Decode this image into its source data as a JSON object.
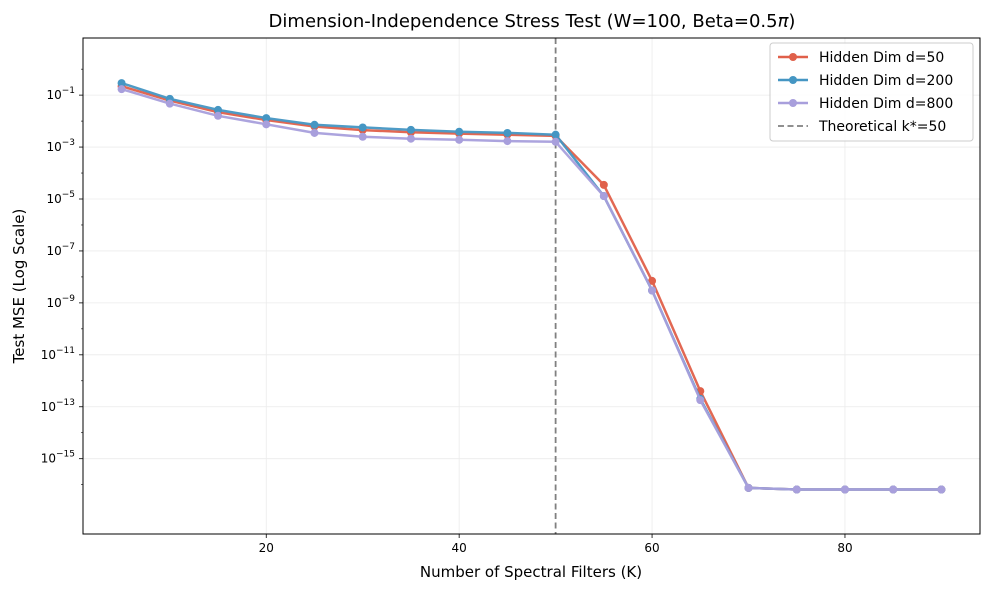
{
  "chart_data": {
    "type": "line",
    "title_main": "Dimension-Independence Stress Test (W=100, Beta=0.5",
    "title_pi": "π",
    "title_close": ")",
    "xlabel": "Number of Spectral Filters (K)",
    "ylabel": "Test MSE (Log Scale)",
    "yscale": "log",
    "xlim": [
      1,
      94
    ],
    "ylim_log10": [
      -17.9,
      1.2
    ],
    "xticks": [
      20,
      40,
      60,
      80
    ],
    "yticks_log10": [
      -1,
      -3,
      -5,
      -7,
      -9,
      -11,
      -13,
      -15
    ],
    "grid": true,
    "legend_position": "top-right",
    "x": [
      5,
      10,
      15,
      20,
      25,
      30,
      35,
      40,
      45,
      50,
      55,
      60,
      65,
      70,
      75,
      80,
      85,
      90
    ],
    "series": [
      {
        "name": "Hidden Dim d=50",
        "color": "#e0604a",
        "values": [
          0.22,
          0.062,
          0.022,
          0.011,
          0.0062,
          0.0045,
          0.0037,
          0.0033,
          0.003,
          0.0027,
          3.5e-05,
          7e-09,
          4e-13,
          7.5e-17,
          6.5e-17,
          6.5e-17,
          6.5e-17,
          6.5e-17
        ]
      },
      {
        "name": "Hidden Dim d=200",
        "color": "#4596c3",
        "values": [
          0.29,
          0.072,
          0.027,
          0.013,
          0.0072,
          0.0057,
          0.0046,
          0.0039,
          0.0035,
          0.003,
          1.3e-05,
          3e-09,
          2e-13,
          7.5e-17,
          6.5e-17,
          6.5e-17,
          6.5e-17,
          6.5e-17
        ]
      },
      {
        "name": "Hidden Dim d=800",
        "color": "#a89fdc",
        "values": [
          0.17,
          0.047,
          0.016,
          0.0075,
          0.0035,
          0.0025,
          0.0021,
          0.0019,
          0.0017,
          0.0016,
          1.3e-05,
          3e-09,
          1.8e-13,
          7.5e-17,
          6.5e-17,
          6.5e-17,
          6.5e-17,
          6.5e-17
        ]
      }
    ],
    "vline": {
      "x": 50,
      "label": "Theoretical k*=50",
      "color": "#808080"
    }
  }
}
